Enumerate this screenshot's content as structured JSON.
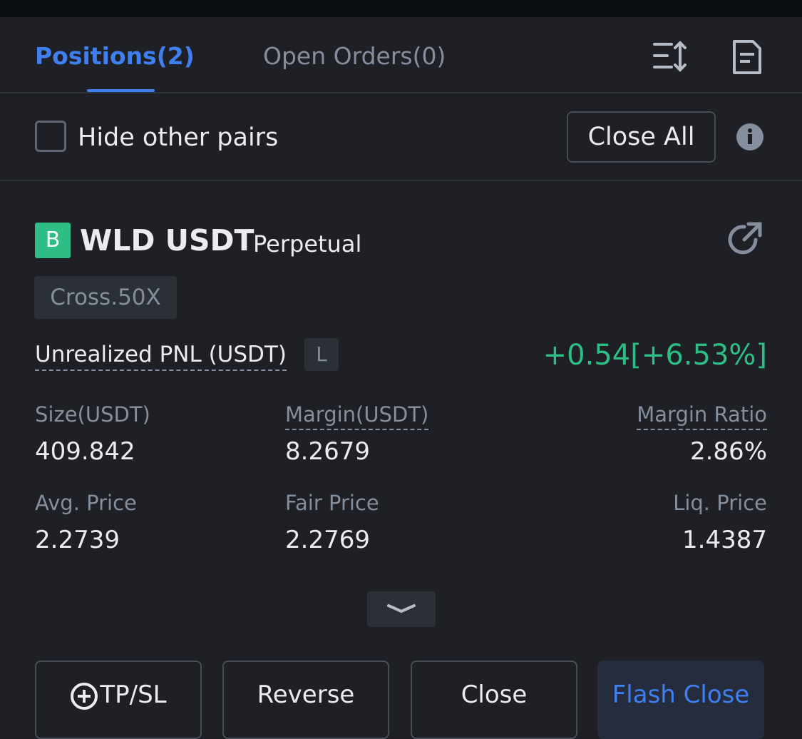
{
  "tabs": [
    "Positions(2)",
    "Open Orders(0)"
  ],
  "filter": {
    "checkbox_label": "Hide other pairs",
    "close_all": "Close All"
  },
  "position": {
    "side_badge": "B",
    "symbol": "WLD USDT",
    "contract": "Perpetual",
    "margin_mode": "Cross.50X",
    "pnl_label": "Unrealized PNL (USDT)",
    "pnl_badge": "L",
    "pnl_value": "+0.54[+6.53%]",
    "fields": [
      {
        "label": "Size(USDT)",
        "value": "409.842"
      },
      {
        "label": "Margin(USDT)",
        "value": "8.2679"
      },
      {
        "label": "Margin Ratio",
        "value": "2.86%"
      },
      {
        "label": "Avg. Price",
        "value": "2.2739"
      },
      {
        "label": "Fair Price",
        "value": "2.2769"
      },
      {
        "label": "Liq. Price",
        "value": "1.4387"
      }
    ]
  },
  "buttons": [
    "TP/SL",
    "Reverse",
    "Close",
    "Flash Close"
  ]
}
